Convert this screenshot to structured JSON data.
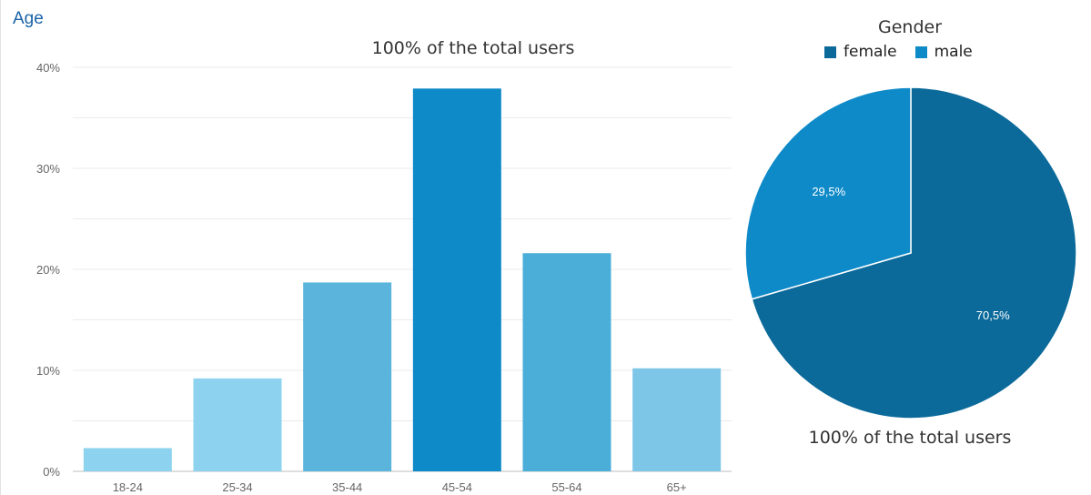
{
  "section": {
    "title": "Age"
  },
  "age_chart": {
    "subtitle": "100% of the total users"
  },
  "gender_chart": {
    "title": "Gender",
    "subtitle": "100% of the total users",
    "legend": [
      {
        "label": "female",
        "color": "#0b6a9a"
      },
      {
        "label": "male",
        "color": "#0f8ac8"
      }
    ]
  },
  "chart_data": [
    {
      "type": "bar",
      "title": "",
      "subtitle": "100% of the total users",
      "categories": [
        "18-24",
        "25-34",
        "35-44",
        "45-54",
        "55-64",
        "65+"
      ],
      "values": [
        2.3,
        9.2,
        18.7,
        37.9,
        21.6,
        10.2
      ],
      "bar_colors": [
        "#8dd2ef",
        "#8dd2ef",
        "#5ab4dc",
        "#0f8ac8",
        "#4baed9",
        "#7ec6e8"
      ],
      "ylim": [
        0,
        40
      ],
      "yticks": [
        0,
        10,
        20,
        30,
        40
      ],
      "ytick_labels": [
        "0%",
        "10%",
        "20%",
        "30%",
        "40%"
      ],
      "grid": true
    },
    {
      "type": "pie",
      "title": "Gender",
      "subtitle": "100% of the total users",
      "labels": [
        "female",
        "male"
      ],
      "values": [
        70.5,
        29.5
      ],
      "value_labels": [
        "70,5%",
        "29,5%"
      ],
      "colors": [
        "#0b6a9a",
        "#0f8ac8"
      ],
      "legend": "top"
    }
  ]
}
